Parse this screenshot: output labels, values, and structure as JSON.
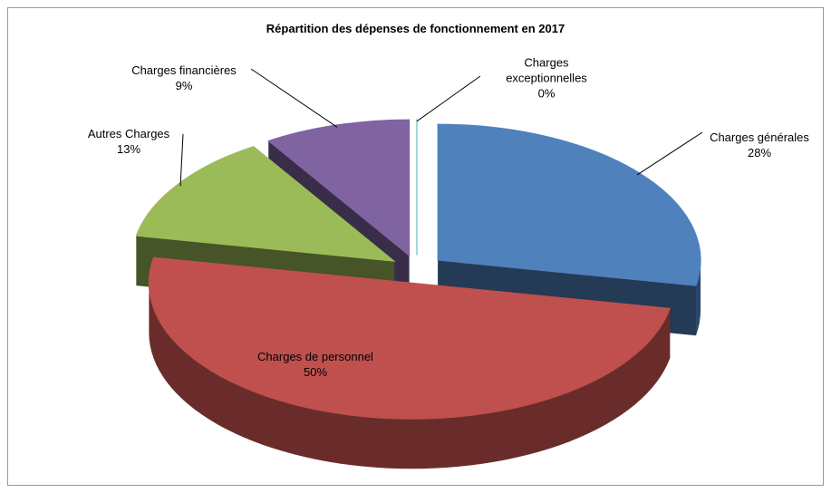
{
  "chart_data": {
    "type": "pie3d",
    "title": "Répartition des dépenses de fonctionnement en 2017",
    "categories": [
      "Charges générales",
      "Charges de personnel",
      "Autres Charges",
      "Charges financières",
      "Charges exceptionnelles"
    ],
    "values": [
      28,
      50,
      13,
      9,
      0
    ],
    "value_labels": [
      "28%",
      "50%",
      "13%",
      "9%",
      "0%"
    ],
    "colors": [
      "#4f81bd",
      "#c0504d",
      "#9bbb59",
      "#8064a2",
      "#4bacc6"
    ]
  }
}
